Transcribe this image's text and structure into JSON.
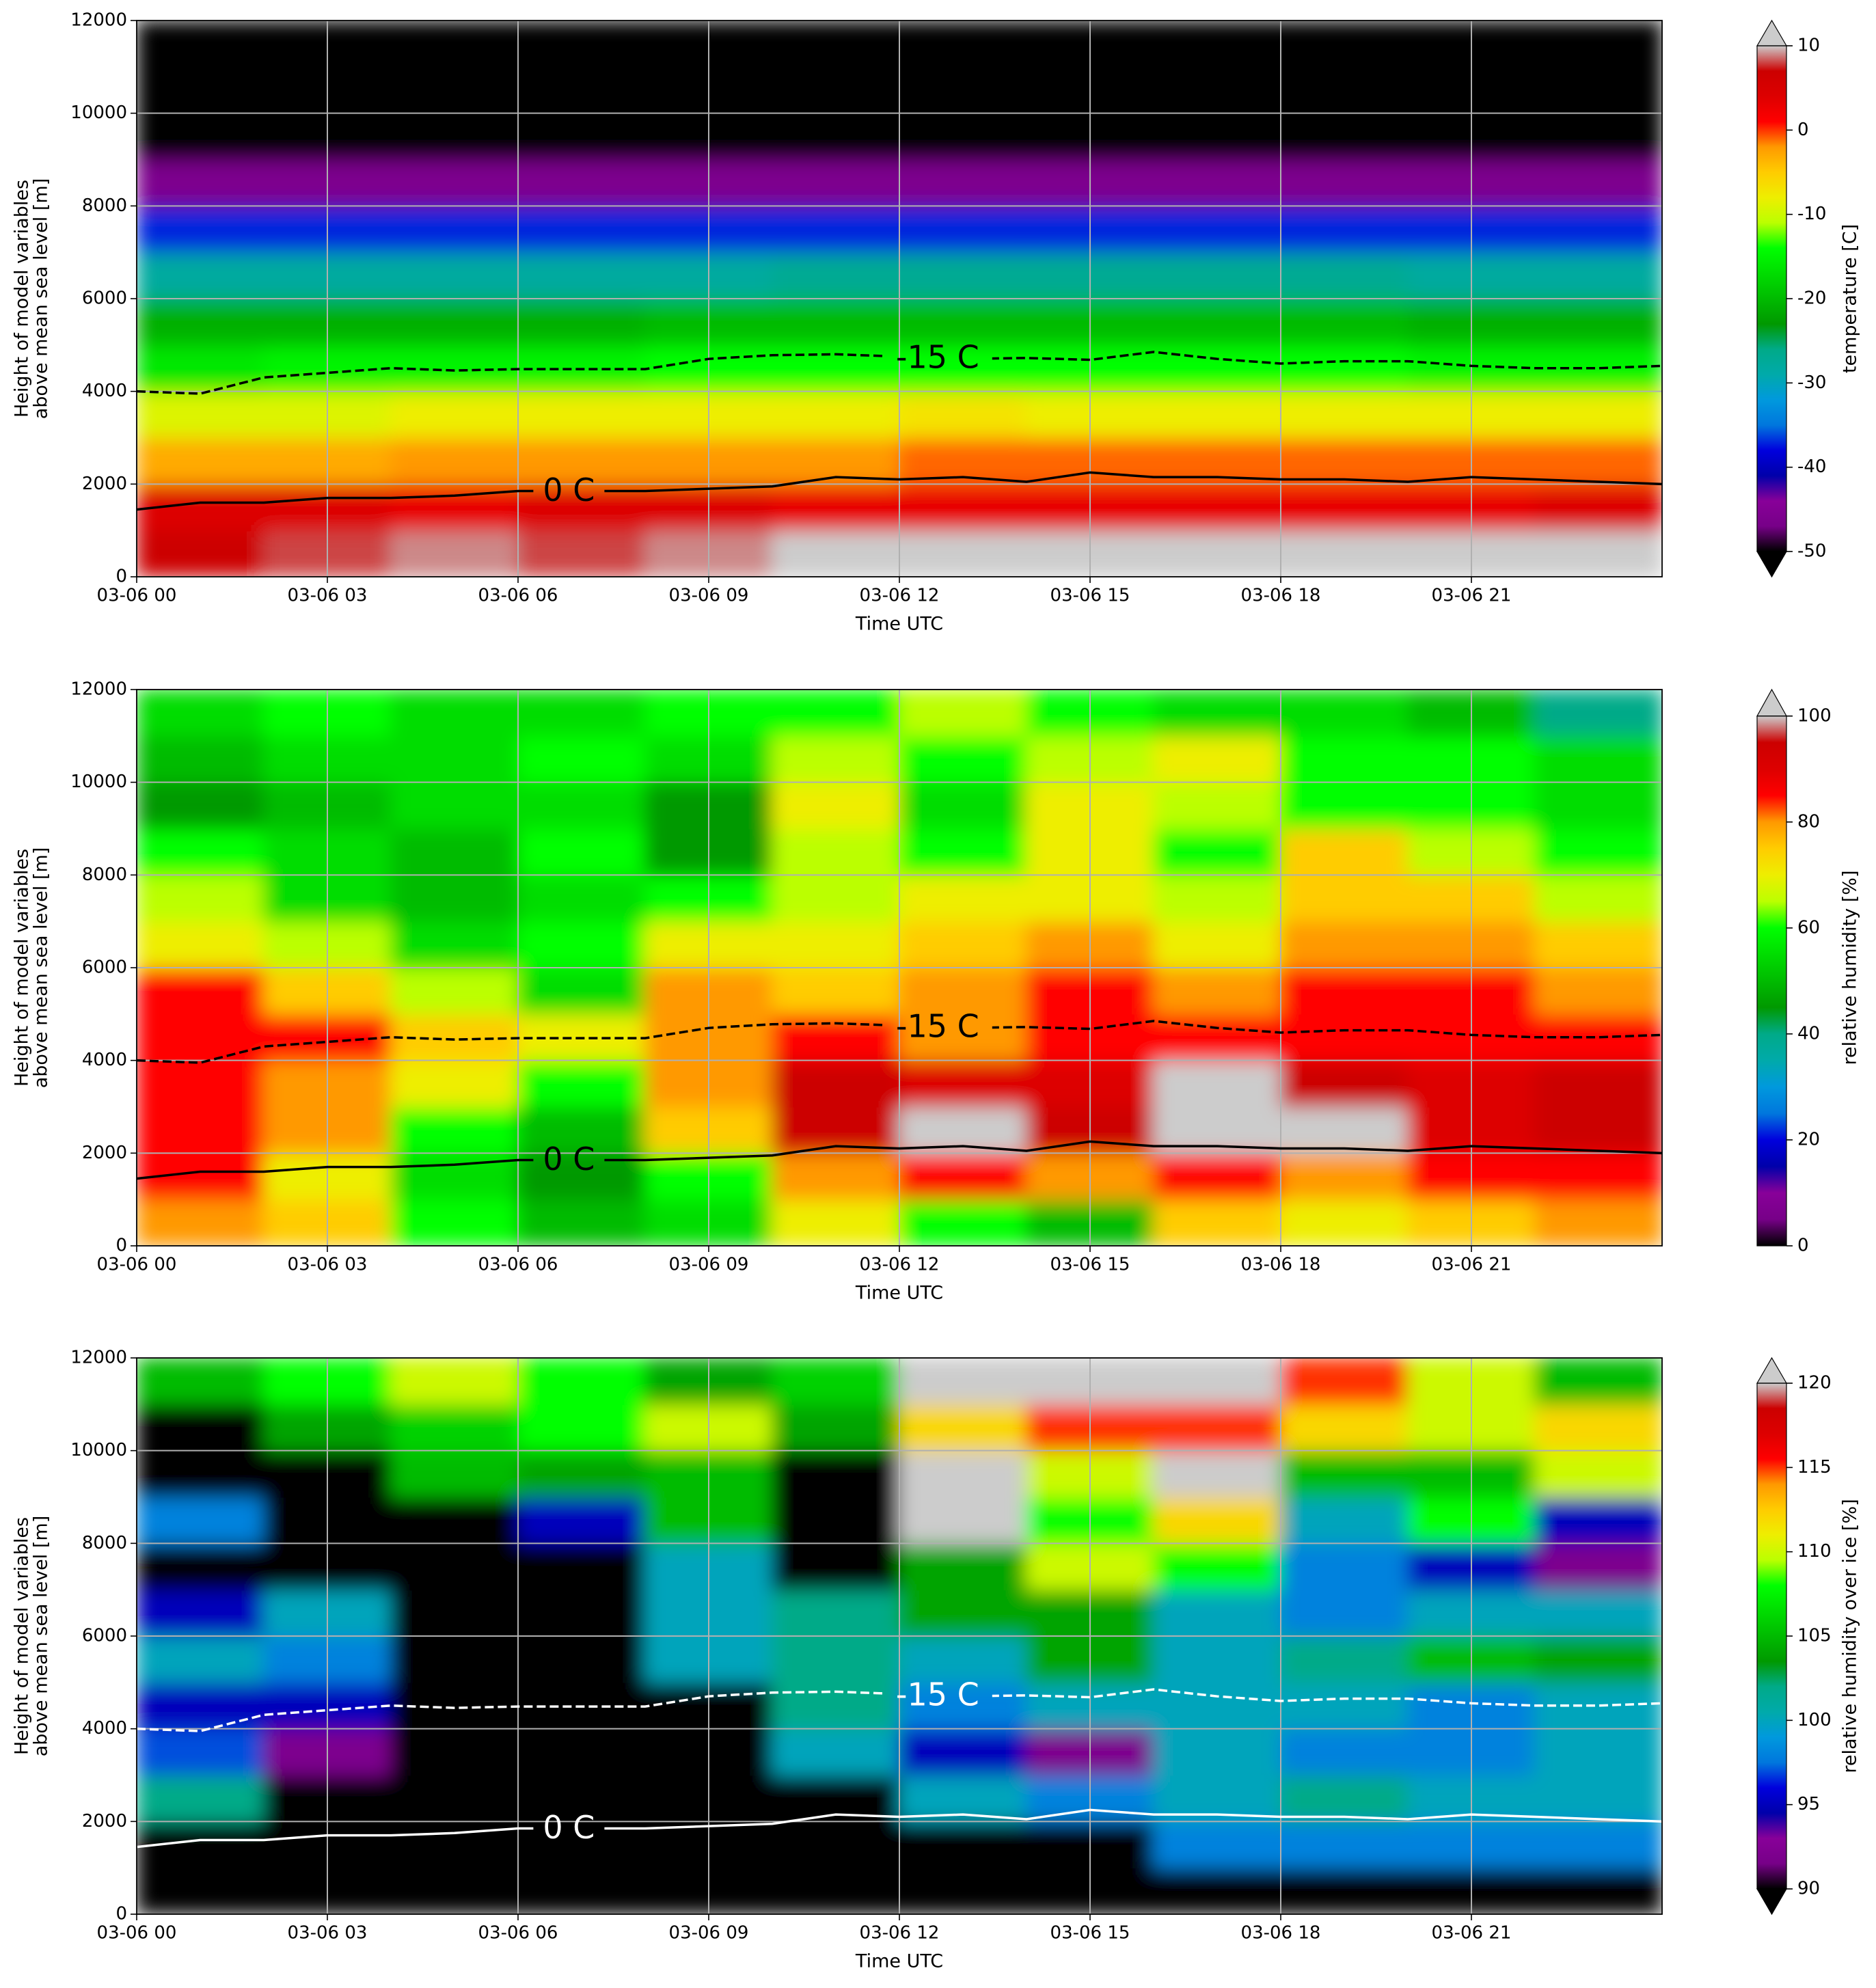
{
  "chart_data": [
    {
      "type": "heatmap",
      "xlabel": "Time UTC",
      "ylabel": [
        "Height of model variables",
        "above mean sea level [m]"
      ],
      "xlim": [
        0,
        24
      ],
      "xticks": [
        {
          "value": 0,
          "label": "03-06 00"
        },
        {
          "value": 3,
          "label": "03-06 03"
        },
        {
          "value": 6,
          "label": "03-06 06"
        },
        {
          "value": 9,
          "label": "03-06 09"
        },
        {
          "value": 12,
          "label": "03-06 12"
        },
        {
          "value": 15,
          "label": "03-06 15"
        },
        {
          "value": 18,
          "label": "03-06 18"
        },
        {
          "value": 21,
          "label": "03-06 21"
        }
      ],
      "ylim": [
        0,
        12000
      ],
      "yticks": [
        0,
        2000,
        4000,
        6000,
        8000,
        10000,
        12000
      ],
      "grid": true,
      "colormap": "nipy_spectral",
      "x": [
        1,
        3,
        5,
        7,
        9,
        11,
        13,
        15,
        17,
        19,
        21,
        23
      ],
      "y": [
        500,
        1500,
        2500,
        3500,
        4500,
        5500,
        6500,
        7500,
        8500,
        9500,
        10500,
        11500
      ],
      "z": [
        [
          7,
          8,
          9,
          8,
          9,
          10,
          11,
          11,
          10,
          11,
          11,
          10
        ],
        [
          4,
          4,
          3,
          4,
          4,
          3,
          3,
          3,
          3,
          3,
          3,
          4
        ],
        [
          -3,
          -3,
          -2,
          -2,
          -2,
          -2,
          -1,
          -1,
          -1,
          -1,
          -1,
          -1
        ],
        [
          -9,
          -9,
          -8,
          -8,
          -8,
          -8,
          -7,
          -8,
          -8,
          -8,
          -8,
          -8
        ],
        [
          -16,
          -15,
          -15,
          -15,
          -14,
          -14,
          -14,
          -14,
          -14,
          -14,
          -15,
          -15
        ],
        [
          -21,
          -21,
          -21,
          -21,
          -20,
          -20,
          -20,
          -20,
          -20,
          -20,
          -21,
          -21
        ],
        [
          -28,
          -28,
          -28,
          -28,
          -28,
          -27,
          -27,
          -27,
          -27,
          -27,
          -28,
          -28
        ],
        [
          -37,
          -37,
          -37,
          -37,
          -37,
          -37,
          -37,
          -37,
          -37,
          -37,
          -37,
          -37
        ],
        [
          -46,
          -46,
          -46,
          -46,
          -46,
          -46,
          -46,
          -46,
          -46,
          -46,
          -46,
          -46
        ],
        [
          -55,
          -55,
          -55,
          -55,
          -55,
          -55,
          -55,
          -55,
          -55,
          -55,
          -55,
          -55
        ],
        [
          -55,
          -55,
          -55,
          -55,
          -55,
          -55,
          -55,
          -55,
          -55,
          -55,
          -55,
          -55
        ],
        [
          -55,
          -55,
          -55,
          -55,
          -55,
          -55,
          -55,
          -55,
          -55,
          -55,
          -55,
          -55
        ]
      ],
      "colorbar": {
        "label": "temperature [C]",
        "lim": [
          -50,
          10
        ],
        "ticks": [
          10,
          0,
          -10,
          -20,
          -30,
          -40,
          -50
        ],
        "extend": "both"
      },
      "contours": [
        {
          "name": "0 C",
          "color": "#000000",
          "linestyle": "solid",
          "x": [
            0,
            1,
            2,
            3,
            4,
            5,
            6,
            7,
            8,
            9,
            10,
            11,
            12,
            13,
            14,
            15,
            16,
            17,
            18,
            19,
            20,
            21,
            22,
            23,
            24
          ],
          "values": [
            1450,
            1600,
            1600,
            1700,
            1700,
            1750,
            1850,
            1850,
            1850,
            1900,
            1950,
            2150,
            2100,
            2150,
            2050,
            2250,
            2150,
            2150,
            2100,
            2100,
            2050,
            2150,
            2100,
            2050,
            2000
          ]
        },
        {
          "name": "-15 C",
          "color": "#000000",
          "linestyle": "dashed",
          "x": [
            0,
            1,
            2,
            3,
            4,
            5,
            6,
            7,
            8,
            9,
            10,
            11,
            12,
            13,
            14,
            15,
            16,
            17,
            18,
            19,
            20,
            21,
            22,
            23,
            24
          ],
          "values": [
            4000,
            3950,
            4300,
            4400,
            4500,
            4450,
            4480,
            4480,
            4480,
            4700,
            4780,
            4800,
            4750,
            4700,
            4720,
            4680,
            4850,
            4700,
            4600,
            4650,
            4650,
            4550,
            4500,
            4500,
            4550
          ]
        }
      ]
    },
    {
      "type": "heatmap",
      "xlabel": "Time UTC",
      "ylabel": [
        "Height of model variables",
        "above mean sea level [m]"
      ],
      "xlim": [
        0,
        24
      ],
      "xticks": [
        {
          "value": 0,
          "label": "03-06 00"
        },
        {
          "value": 3,
          "label": "03-06 03"
        },
        {
          "value": 6,
          "label": "03-06 06"
        },
        {
          "value": 9,
          "label": "03-06 09"
        },
        {
          "value": 12,
          "label": "03-06 12"
        },
        {
          "value": 15,
          "label": "03-06 15"
        },
        {
          "value": 18,
          "label": "03-06 18"
        },
        {
          "value": 21,
          "label": "03-06 21"
        }
      ],
      "ylim": [
        0,
        12000
      ],
      "yticks": [
        0,
        2000,
        4000,
        6000,
        8000,
        10000,
        12000
      ],
      "grid": true,
      "colormap": "nipy_spectral",
      "x": [
        1,
        3,
        5,
        7,
        9,
        11,
        13,
        15,
        17,
        19,
        21,
        23
      ],
      "y": [
        500,
        1500,
        2500,
        3500,
        4500,
        5500,
        6500,
        7500,
        8500,
        9500,
        10500,
        11500
      ],
      "z": [
        [
          80,
          75,
          60,
          50,
          55,
          70,
          60,
          50,
          75,
          70,
          75,
          80
        ],
        [
          85,
          70,
          55,
          45,
          60,
          80,
          85,
          80,
          85,
          80,
          85,
          85
        ],
        [
          85,
          80,
          60,
          50,
          75,
          95,
          100,
          95,
          100,
          100,
          90,
          95
        ],
        [
          85,
          80,
          70,
          60,
          80,
          95,
          90,
          90,
          100,
          95,
          90,
          95
        ],
        [
          85,
          85,
          75,
          70,
          80,
          85,
          80,
          85,
          85,
          85,
          85,
          85
        ],
        [
          85,
          75,
          65,
          55,
          80,
          75,
          80,
          85,
          80,
          85,
          85,
          80
        ],
        [
          70,
          65,
          55,
          60,
          70,
          70,
          75,
          80,
          70,
          80,
          80,
          75
        ],
        [
          65,
          55,
          50,
          55,
          60,
          65,
          70,
          70,
          65,
          75,
          75,
          65
        ],
        [
          60,
          55,
          50,
          60,
          45,
          65,
          60,
          70,
          60,
          75,
          65,
          60
        ],
        [
          45,
          50,
          55,
          55,
          45,
          70,
          55,
          70,
          65,
          60,
          60,
          55
        ],
        [
          50,
          55,
          55,
          60,
          55,
          65,
          60,
          65,
          70,
          60,
          60,
          55
        ],
        [
          55,
          60,
          55,
          55,
          60,
          60,
          65,
          60,
          55,
          55,
          50,
          40
        ]
      ],
      "colorbar": {
        "label": "relative humidity [%]",
        "lim": [
          0,
          100
        ],
        "ticks": [
          100,
          80,
          60,
          40,
          20,
          0
        ],
        "extend": "max"
      },
      "contours": [
        {
          "name": "0 C",
          "color": "#000000",
          "linestyle": "solid",
          "x": [
            0,
            1,
            2,
            3,
            4,
            5,
            6,
            7,
            8,
            9,
            10,
            11,
            12,
            13,
            14,
            15,
            16,
            17,
            18,
            19,
            20,
            21,
            22,
            23,
            24
          ],
          "values": [
            1450,
            1600,
            1600,
            1700,
            1700,
            1750,
            1850,
            1850,
            1850,
            1900,
            1950,
            2150,
            2100,
            2150,
            2050,
            2250,
            2150,
            2150,
            2100,
            2100,
            2050,
            2150,
            2100,
            2050,
            2000
          ]
        },
        {
          "name": "-15 C",
          "color": "#000000",
          "linestyle": "dashed",
          "x": [
            0,
            1,
            2,
            3,
            4,
            5,
            6,
            7,
            8,
            9,
            10,
            11,
            12,
            13,
            14,
            15,
            16,
            17,
            18,
            19,
            20,
            21,
            22,
            23,
            24
          ],
          "values": [
            4000,
            3950,
            4300,
            4400,
            4500,
            4450,
            4480,
            4480,
            4480,
            4700,
            4780,
            4800,
            4750,
            4700,
            4720,
            4680,
            4850,
            4700,
            4600,
            4650,
            4650,
            4550,
            4500,
            4500,
            4550
          ]
        }
      ]
    },
    {
      "type": "heatmap",
      "xlabel": "Time UTC",
      "ylabel": [
        "Height of model variables",
        "above mean sea level [m]"
      ],
      "xlim": [
        0,
        24
      ],
      "xticks": [
        {
          "value": 0,
          "label": "03-06 00"
        },
        {
          "value": 3,
          "label": "03-06 03"
        },
        {
          "value": 6,
          "label": "03-06 06"
        },
        {
          "value": 9,
          "label": "03-06 09"
        },
        {
          "value": 12,
          "label": "03-06 12"
        },
        {
          "value": 15,
          "label": "03-06 15"
        },
        {
          "value": 18,
          "label": "03-06 18"
        },
        {
          "value": 21,
          "label": "03-06 21"
        }
      ],
      "ylim": [
        0,
        12000
      ],
      "yticks": [
        0,
        2000,
        4000,
        6000,
        8000,
        10000,
        12000
      ],
      "grid": true,
      "colormap": "nipy_spectral",
      "x": [
        1,
        3,
        5,
        7,
        9,
        11,
        13,
        15,
        17,
        19,
        21,
        23
      ],
      "y": [
        500,
        1500,
        2500,
        3500,
        4500,
        5500,
        6500,
        7500,
        8500,
        9500,
        10500,
        11500
      ],
      "z": [
        [
          80,
          80,
          80,
          80,
          80,
          80,
          80,
          80,
          80,
          80,
          80,
          80
        ],
        [
          85,
          80,
          80,
          80,
          80,
          80,
          80,
          85,
          98,
          98,
          98,
          98
        ],
        [
          102,
          85,
          80,
          80,
          80,
          85,
          100,
          98,
          100,
          102,
          100,
          100
        ],
        [
          97,
          92,
          80,
          80,
          80,
          100,
          95,
          92,
          100,
          98,
          98,
          100
        ],
        [
          95,
          95,
          85,
          80,
          85,
          102,
          98,
          100,
          100,
          100,
          98,
          100
        ],
        [
          100,
          98,
          85,
          80,
          100,
          102,
          100,
          104,
          100,
          102,
          105,
          104
        ],
        [
          95,
          100,
          80,
          80,
          100,
          102,
          104,
          104,
          100,
          98,
          100,
          100
        ],
        [
          85,
          80,
          80,
          80,
          100,
          85,
          104,
          110,
          108,
          98,
          95,
          92
        ],
        [
          98,
          80,
          80,
          95,
          105,
          85,
          120,
          108,
          112,
          100,
          108,
          95
        ],
        [
          80,
          80,
          105,
          104,
          105,
          85,
          120,
          110,
          120,
          105,
          105,
          110
        ],
        [
          80,
          104,
          106,
          108,
          110,
          104,
          112,
          115,
          115,
          112,
          110,
          112
        ],
        [
          105,
          108,
          110,
          108,
          104,
          106,
          120,
          120,
          120,
          115,
          110,
          105
        ]
      ],
      "colorbar": {
        "label": "relative humidity over ice [%]",
        "lim": [
          90,
          120
        ],
        "ticks": [
          120,
          115,
          110,
          105,
          100,
          95,
          90
        ],
        "extend": "both"
      },
      "contours": [
        {
          "name": "0 C",
          "color": "#ffffff",
          "linestyle": "solid",
          "x": [
            0,
            1,
            2,
            3,
            4,
            5,
            6,
            7,
            8,
            9,
            10,
            11,
            12,
            13,
            14,
            15,
            16,
            17,
            18,
            19,
            20,
            21,
            22,
            23,
            24
          ],
          "values": [
            1450,
            1600,
            1600,
            1700,
            1700,
            1750,
            1850,
            1850,
            1850,
            1900,
            1950,
            2150,
            2100,
            2150,
            2050,
            2250,
            2150,
            2150,
            2100,
            2100,
            2050,
            2150,
            2100,
            2050,
            2000
          ]
        },
        {
          "name": "-15 C",
          "color": "#ffffff",
          "linestyle": "dashed",
          "x": [
            0,
            1,
            2,
            3,
            4,
            5,
            6,
            7,
            8,
            9,
            10,
            11,
            12,
            13,
            14,
            15,
            16,
            17,
            18,
            19,
            20,
            21,
            22,
            23,
            24
          ],
          "values": [
            4000,
            3950,
            4300,
            4400,
            4500,
            4450,
            4480,
            4480,
            4480,
            4700,
            4780,
            4800,
            4750,
            4700,
            4720,
            4680,
            4850,
            4700,
            4600,
            4650,
            4650,
            4550,
            4500,
            4500,
            4550
          ]
        }
      ]
    }
  ]
}
